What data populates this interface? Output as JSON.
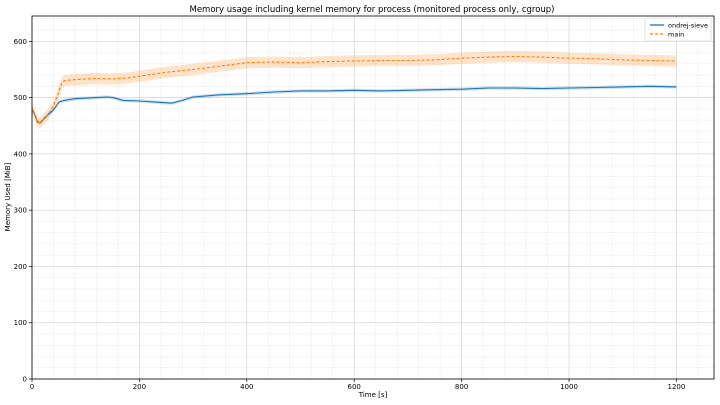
{
  "chart_data": {
    "type": "line",
    "title": "Memory usage including kernel memory for process (monitored process only, cgroup)",
    "xlabel": "Time [s]",
    "ylabel": "Memory Used [MiB]",
    "xlim": [
      0,
      1270
    ],
    "ylim": [
      0,
      645
    ],
    "xticks": [
      0,
      200,
      400,
      600,
      800,
      1000,
      1200
    ],
    "yticks": [
      0,
      100,
      200,
      300,
      400,
      500,
      600
    ],
    "grid": true,
    "legend_position": "top-right",
    "series": [
      {
        "name": "ondrej-sieve",
        "color": "#1f77b4",
        "style": "solid",
        "band_halfwidth": 3,
        "x": [
          0,
          5,
          10,
          15,
          20,
          30,
          40,
          50,
          60,
          80,
          100,
          120,
          140,
          150,
          170,
          200,
          230,
          260,
          280,
          300,
          350,
          400,
          450,
          500,
          550,
          600,
          650,
          700,
          750,
          800,
          850,
          900,
          950,
          1000,
          1050,
          1100,
          1150,
          1200
        ],
        "y": [
          480,
          470,
          457,
          455,
          460,
          470,
          478,
          492,
          495,
          498,
          499,
          500,
          501,
          500,
          495,
          494,
          492,
          490,
          495,
          501,
          505,
          507,
          510,
          512,
          512,
          513,
          512,
          513,
          514,
          515,
          517,
          517,
          516,
          517,
          518,
          519,
          520,
          519
        ]
      },
      {
        "name": "main",
        "color": "#ff7f0e",
        "style": "dashed",
        "band_halfwidth": 10,
        "x": [
          0,
          5,
          10,
          15,
          20,
          30,
          40,
          50,
          55,
          60,
          80,
          100,
          120,
          150,
          180,
          200,
          250,
          300,
          350,
          400,
          450,
          500,
          550,
          600,
          650,
          700,
          750,
          800,
          850,
          900,
          950,
          1000,
          1050,
          1100,
          1150,
          1200
        ],
        "y": [
          480,
          470,
          457,
          455,
          460,
          470,
          485,
          510,
          525,
          530,
          532,
          533,
          534,
          533,
          535,
          538,
          545,
          550,
          556,
          562,
          563,
          562,
          564,
          565,
          566,
          566,
          567,
          570,
          572,
          573,
          572,
          570,
          569,
          567,
          566,
          565
        ]
      }
    ]
  }
}
